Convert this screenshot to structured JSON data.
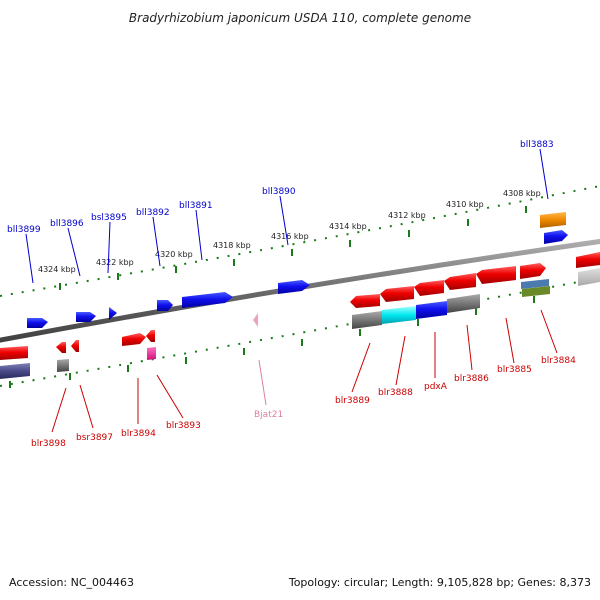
{
  "title": "Bradyrhizobium japonicum USDA 110, complete genome",
  "footer": {
    "accession": "Accession: NC_004463",
    "summary": "Topology: circular; Length: 9,105,828 bp; Genes: 8,373"
  },
  "colors": {
    "top_label": "#0000cc",
    "bottom_label": "#cc0000",
    "rna_label": "#e080a0",
    "backbone": "#7a7a7a",
    "tick": "#1a7a1a"
  },
  "scale_labels": [
    "4324 kbp",
    "4322 kbp",
    "4320 kbp",
    "4318 kbp",
    "4316 kbp",
    "4314 kbp",
    "4312 kbp",
    "4310 kbp",
    "4308 kbp"
  ],
  "top_genes": [
    "bll3899",
    "bll3896",
    "bsl3895",
    "bll3892",
    "bll3891",
    "bll3890",
    "bll3883"
  ],
  "bottom_genes": [
    "blr3898",
    "bsr3897",
    "blr3894",
    "blr3893",
    "Bjat21",
    "blr3889",
    "blr3888",
    "pdxA",
    "blr3886",
    "blr3885",
    "blr3884"
  ]
}
